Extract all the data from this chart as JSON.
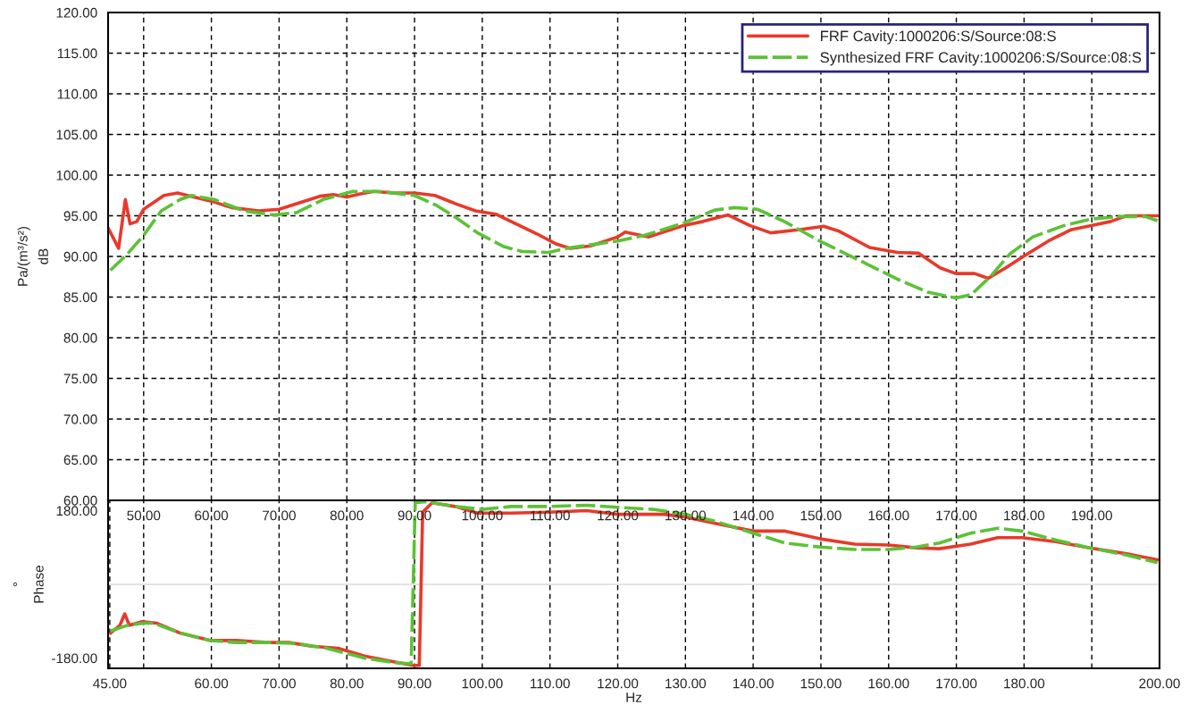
{
  "chart_data": [
    {
      "type": "line",
      "ylabel": "Pa/(m³/s²)\ndB",
      "xlim": [
        44.75,
        200
      ],
      "xticks": [
        {
          "value": 50,
          "label": "50.00"
        },
        {
          "value": 60,
          "label": "60.00"
        },
        {
          "value": 70,
          "label": "70.00"
        },
        {
          "value": 80,
          "label": "80.00"
        },
        {
          "value": 90,
          "label": "90.00"
        },
        {
          "value": 100,
          "label": "100.00"
        },
        {
          "value": 110,
          "label": "110.00"
        },
        {
          "value": 120,
          "label": "120.00"
        },
        {
          "value": 130,
          "label": "130.00"
        },
        {
          "value": 140,
          "label": "140.00"
        },
        {
          "value": 150,
          "label": "150.00"
        },
        {
          "value": 160,
          "label": "160.00"
        },
        {
          "value": 170,
          "label": "170.00"
        },
        {
          "value": 180,
          "label": "180.00"
        },
        {
          "value": 190,
          "label": "190.00"
        }
      ],
      "ylim": [
        60,
        120
      ],
      "yticks": [
        {
          "value": 60,
          "label": "60.00"
        },
        {
          "value": 65,
          "label": "65.00"
        },
        {
          "value": 70,
          "label": "70.00"
        },
        {
          "value": 75,
          "label": "75.00"
        },
        {
          "value": 80,
          "label": "80.00"
        },
        {
          "value": 85,
          "label": "85.00"
        },
        {
          "value": 90,
          "label": "90.00"
        },
        {
          "value": 95,
          "label": "95.00"
        },
        {
          "value": 100,
          "label": "100.00"
        },
        {
          "value": 105,
          "label": "105.00"
        },
        {
          "value": 110,
          "label": "110.00"
        },
        {
          "value": 115,
          "label": "115.00"
        },
        {
          "value": 120,
          "label": "120.00"
        }
      ],
      "grid": true,
      "legend": "top right",
      "marker": "none",
      "series": [
        {
          "name": "FRF Cavity:1000206:S/Source:08:S",
          "color": "#e8392a",
          "line_style": "solid",
          "x": [
            44.75,
            46.3,
            47.3,
            48,
            49,
            50,
            53,
            55,
            57,
            60,
            63,
            67,
            70,
            73,
            76,
            78,
            80,
            82,
            84,
            87,
            90,
            93,
            96,
            99,
            102,
            105,
            108,
            111,
            113,
            116,
            120,
            121.1,
            124.6,
            129.7,
            132.6,
            136.3,
            139.5,
            142.6,
            146.9,
            150.4,
            152.7,
            157.2,
            161.3,
            164.4,
            167.6,
            169.9,
            172.7,
            174.7,
            177.3,
            179.9,
            183.6,
            187,
            189.9,
            192.8,
            195.1,
            199.7
          ],
          "values": [
            93.5,
            91,
            97,
            94,
            94.3,
            95.8,
            97.5,
            97.8,
            97.4,
            96.8,
            96,
            95.6,
            95.8,
            96.6,
            97.4,
            97.6,
            97.3,
            97.7,
            98,
            97.8,
            97.8,
            97.5,
            96.5,
            95.6,
            95.2,
            94,
            92.8,
            91.5,
            91,
            91.3,
            92.4,
            93,
            92.4,
            93.8,
            94.3,
            95.1,
            93.8,
            92.9,
            93.3,
            93.7,
            93.1,
            91.1,
            90.5,
            90.4,
            88.6,
            87.9,
            87.9,
            87.3,
            88.6,
            90,
            91.9,
            93.3,
            93.8,
            94.3,
            95,
            95
          ]
        },
        {
          "name": "Synthesized FRF Cavity:1000206:S/Source:08:S",
          "color": "#5bc236",
          "line_style": "dashed",
          "x": [
            45.1,
            47.6,
            50,
            52.6,
            55.4,
            57.1,
            60.4,
            64.8,
            69.3,
            72.6,
            76.5,
            80.9,
            84.8,
            90,
            93.2,
            95.9,
            99.3,
            103.2,
            105.9,
            109.8,
            112.5,
            120,
            124,
            129.7,
            134.3,
            137.2,
            140.6,
            144.6,
            149.8,
            155.5,
            161.3,
            165.8,
            169.9,
            172.2,
            175,
            177.9,
            181.3,
            185.9,
            189.9,
            193.9,
            197.9,
            199.7
          ],
          "values": [
            88.3,
            90.3,
            92.6,
            95.6,
            97,
            97.5,
            97,
            95.6,
            95.1,
            95.4,
            97,
            98,
            98,
            97.5,
            96.3,
            94.9,
            92.9,
            91.2,
            90.6,
            90.5,
            91,
            91.9,
            92.6,
            94.1,
            95.7,
            96,
            95.8,
            94.3,
            91.9,
            89.6,
            87.2,
            85.6,
            84.9,
            85.3,
            87.5,
            90.3,
            92.4,
            93.8,
            94.6,
            94.9,
            94.9,
            94.4
          ]
        }
      ]
    },
    {
      "type": "line",
      "xlabel": "Hz",
      "ylabel": "°\nPhase",
      "xlim": [
        44.75,
        200
      ],
      "xticks": [
        {
          "value": 45,
          "label": "45.00"
        },
        {
          "value": 50,
          "label": null
        },
        {
          "value": 60,
          "label": "60.00"
        },
        {
          "value": 70,
          "label": "70.00"
        },
        {
          "value": 80,
          "label": "80.00"
        },
        {
          "value": 90,
          "label": "90.00"
        },
        {
          "value": 100,
          "label": "100.00"
        },
        {
          "value": 110,
          "label": "110.00"
        },
        {
          "value": 120,
          "label": "120.00"
        },
        {
          "value": 130,
          "label": "130.00"
        },
        {
          "value": 140,
          "label": "140.00"
        },
        {
          "value": 150,
          "label": "150.00"
        },
        {
          "value": 160,
          "label": "160.00"
        },
        {
          "value": 170,
          "label": "170.00"
        },
        {
          "value": 180,
          "label": "180.00"
        },
        {
          "value": 190,
          "label": null
        },
        {
          "value": 200,
          "label": "200.00"
        }
      ],
      "ylim": [
        -205,
        205
      ],
      "yticks": [
        {
          "value": -180,
          "label": "-180.00"
        },
        {
          "value": 0,
          "label": null
        },
        {
          "value": 180,
          "label": "180.00"
        }
      ],
      "grid": "x",
      "marker": "none",
      "ref_lines": [
        {
          "axis": "y",
          "value": 0,
          "color": "#d9d9d9"
        }
      ],
      "series": [
        {
          "color": "#e8392a",
          "line_style": "solid",
          "x": [
            45.1,
            46.5,
            47.2,
            47.9,
            49.8,
            52,
            55.4,
            59.8,
            63.7,
            68.2,
            71.5,
            74.8,
            78.7,
            82.6,
            87,
            89.8,
            90.7,
            91.2,
            92.6,
            96,
            99.3,
            104.3,
            109.8,
            115.4,
            120,
            126.9,
            130,
            134.4,
            140,
            144.7,
            149.9,
            155,
            160,
            164.1,
            167.5,
            172.1,
            176.1,
            179.7,
            184.7,
            189.7,
            195,
            199.7
          ],
          "values": [
            -119,
            -100,
            -72,
            -100,
            -91,
            -95,
            -119,
            -137,
            -137,
            -142,
            -142,
            -151,
            -156,
            -175,
            -189,
            -198,
            -198,
            176,
            199,
            190,
            174,
            174,
            176,
            180,
            171,
            171,
            164,
            149,
            130,
            130,
            111,
            98,
            96,
            89,
            87,
            98,
            114,
            114,
            104,
            89,
            75,
            60
          ]
        },
        {
          "color": "#5bc236",
          "line_style": "dashed",
          "x": [
            45.1,
            47.6,
            50,
            51.5,
            55.4,
            59.8,
            63.7,
            68.2,
            72.6,
            77,
            82.6,
            87,
            89.5,
            89.8,
            90.1,
            91.5,
            96,
            100,
            104.3,
            109.8,
            115.4,
            120,
            125.2,
            130,
            134.4,
            140,
            144.7,
            149.9,
            155,
            160,
            164.1,
            167.5,
            172.1,
            176.1,
            179.7,
            184.7,
            189.7,
            195,
            199.7
          ],
          "values": [
            -114,
            -100,
            -95,
            -95,
            -119,
            -137,
            -142,
            -142,
            -144,
            -156,
            -180,
            -191,
            -194,
            -2,
            199,
            202,
            190,
            183,
            190,
            190,
            193,
            188,
            183,
            171,
            154,
            125,
            101,
            91,
            85,
            85,
            91,
            101,
            125,
            137,
            130,
            108,
            89,
            72,
            53
          ]
        }
      ]
    }
  ]
}
